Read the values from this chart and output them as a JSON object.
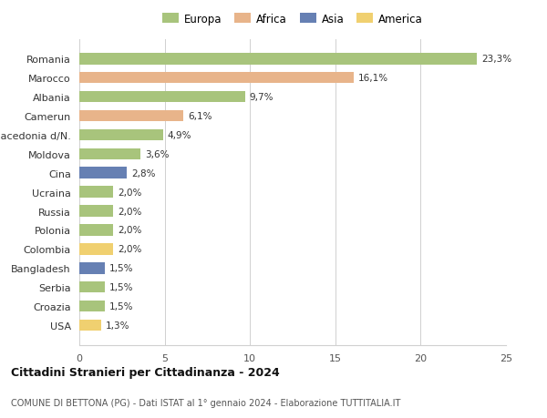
{
  "countries": [
    "Romania",
    "Marocco",
    "Albania",
    "Camerun",
    "Macedonia d/N.",
    "Moldova",
    "Cina",
    "Ucraina",
    "Russia",
    "Polonia",
    "Colombia",
    "Bangladesh",
    "Serbia",
    "Croazia",
    "USA"
  ],
  "values": [
    23.3,
    16.1,
    9.7,
    6.1,
    4.9,
    3.6,
    2.8,
    2.0,
    2.0,
    2.0,
    2.0,
    1.5,
    1.5,
    1.5,
    1.3
  ],
  "labels": [
    "23,3%",
    "16,1%",
    "9,7%",
    "6,1%",
    "4,9%",
    "3,6%",
    "2,8%",
    "2,0%",
    "2,0%",
    "2,0%",
    "2,0%",
    "1,5%",
    "1,5%",
    "1,5%",
    "1,3%"
  ],
  "continents": [
    "Europa",
    "Africa",
    "Europa",
    "Africa",
    "Europa",
    "Europa",
    "Asia",
    "Europa",
    "Europa",
    "Europa",
    "America",
    "Asia",
    "Europa",
    "Europa",
    "America"
  ],
  "colors": {
    "Europa": "#a8c47c",
    "Africa": "#e8b48a",
    "Asia": "#6680b3",
    "America": "#f0d070"
  },
  "title1": "Cittadini Stranieri per Cittadinanza - 2024",
  "title2": "COMUNE DI BETTONA (PG) - Dati ISTAT al 1° gennaio 2024 - Elaborazione TUTTITALIA.IT",
  "xlim": [
    0,
    25
  ],
  "xticks": [
    0,
    5,
    10,
    15,
    20,
    25
  ],
  "background_color": "#ffffff",
  "grid_color": "#d0d0d0",
  "legend_order": [
    "Europa",
    "Africa",
    "Asia",
    "America"
  ]
}
